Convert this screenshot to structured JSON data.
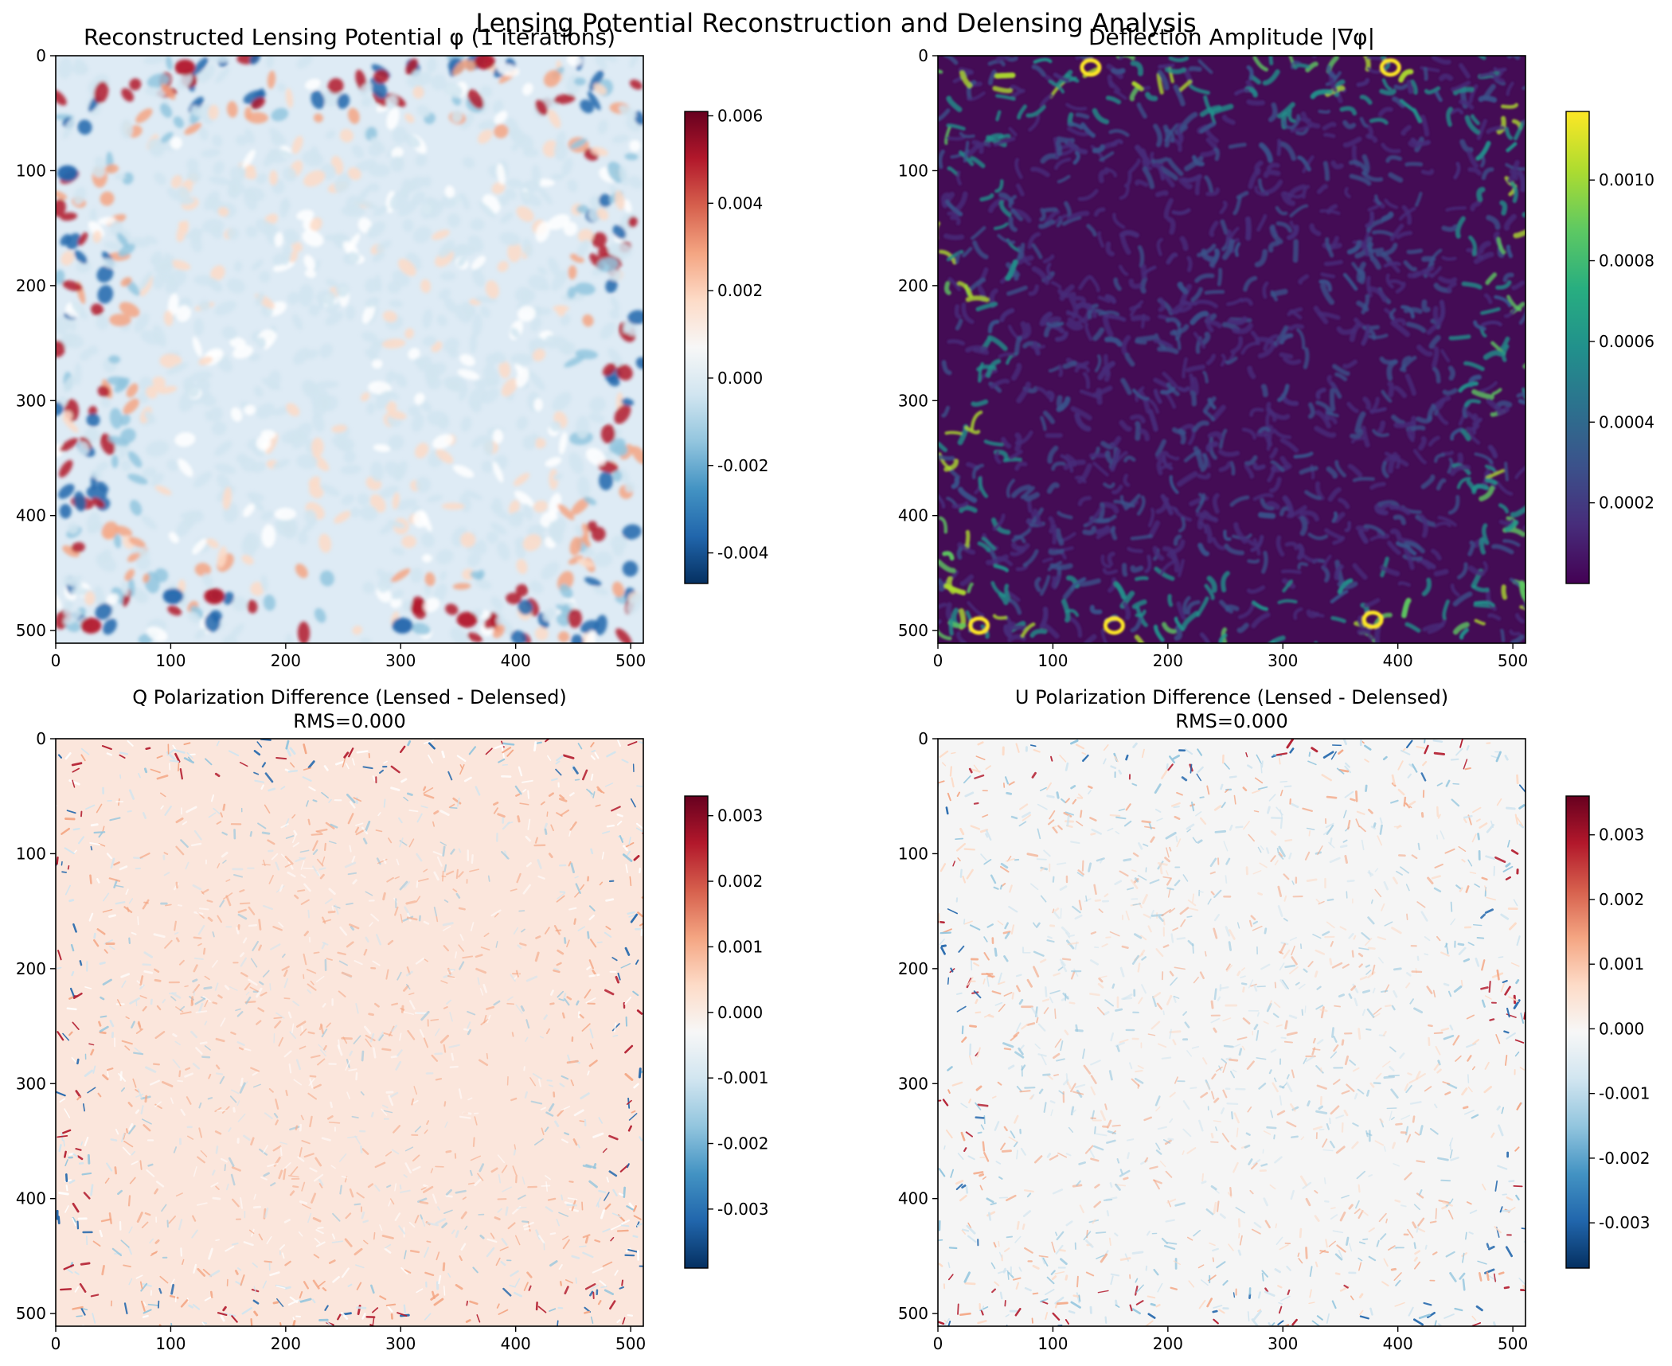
{
  "figure": {
    "suptitle": "Lensing Potential Reconstruction and Delensing Analysis"
  },
  "chart_data": [
    {
      "type": "heatmap",
      "title": "Reconstructed Lensing Potential φ (1 iterations)",
      "title_line2": "",
      "colormap": "RdBu_r",
      "x_range": [
        0,
        511
      ],
      "y_range": [
        511,
        0
      ],
      "x_ticks": [
        0,
        100,
        200,
        300,
        400,
        500
      ],
      "y_ticks": [
        0,
        100,
        200,
        300,
        400,
        500
      ],
      "colorbar": {
        "vmin": -0.0047,
        "vmax": 0.0061,
        "ticks": [
          "-0.004",
          "-0.002",
          "0.000",
          "0.002",
          "0.004",
          "0.006"
        ]
      },
      "texture": "blobs",
      "background": "#deebf5"
    },
    {
      "type": "heatmap",
      "title": "Deflection Amplitude |∇φ|",
      "title_line2": "",
      "colormap": "viridis",
      "x_range": [
        0,
        511
      ],
      "y_range": [
        511,
        0
      ],
      "x_ticks": [
        0,
        100,
        200,
        300,
        400,
        500
      ],
      "y_ticks": [
        0,
        100,
        200,
        300,
        400,
        500
      ],
      "colorbar": {
        "vmin": 0.0,
        "vmax": 0.00117,
        "ticks": [
          "0.0002",
          "0.0004",
          "0.0006",
          "0.0008",
          "0.0010"
        ]
      },
      "texture": "worms",
      "background": "#440c55"
    },
    {
      "type": "heatmap",
      "title": "Q Polarization Difference (Lensed - Delensed)",
      "title_line2": "RMS=0.000",
      "colormap": "RdBu_r",
      "x_range": [
        0,
        511
      ],
      "y_range": [
        511,
        0
      ],
      "x_ticks": [
        0,
        100,
        200,
        300,
        400,
        500
      ],
      "y_ticks": [
        0,
        100,
        200,
        300,
        400,
        500
      ],
      "colorbar": {
        "vmin": -0.0039,
        "vmax": 0.0033,
        "ticks": [
          "-0.003",
          "-0.002",
          "-0.001",
          "0.000",
          "0.001",
          "0.002",
          "0.003"
        ]
      },
      "texture": "streaks",
      "background": "#fbe6dc"
    },
    {
      "type": "heatmap",
      "title": "U Polarization Difference (Lensed - Delensed)",
      "title_line2": "RMS=0.000",
      "colormap": "RdBu_r",
      "x_range": [
        0,
        511
      ],
      "y_range": [
        511,
        0
      ],
      "x_ticks": [
        0,
        100,
        200,
        300,
        400,
        500
      ],
      "y_ticks": [
        0,
        100,
        200,
        300,
        400,
        500
      ],
      "colorbar": {
        "vmin": -0.0037,
        "vmax": 0.0036,
        "ticks": [
          "-0.003",
          "-0.002",
          "-0.001",
          "0.000",
          "0.001",
          "0.002",
          "0.003"
        ]
      },
      "texture": "streaks",
      "background": "#f5f5f5"
    }
  ]
}
